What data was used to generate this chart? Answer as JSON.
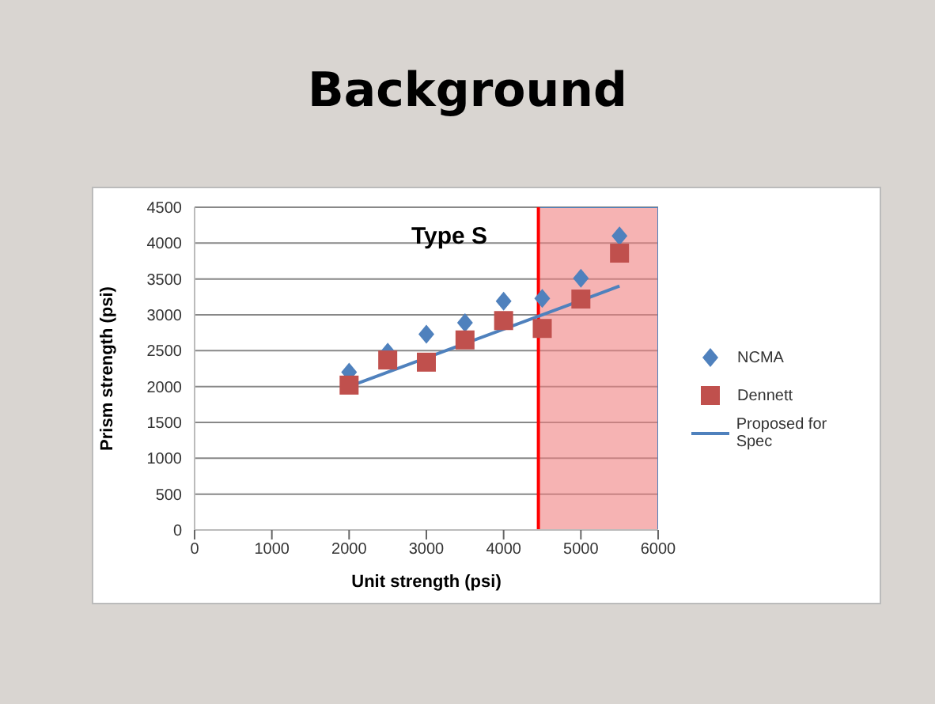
{
  "chart_data": {
    "type": "scatter",
    "title": "Background",
    "subtitle": "Type S",
    "xlabel": "Unit strength (psi)",
    "ylabel": "Prism strength (psi)",
    "x": [
      2000,
      2500,
      3000,
      3500,
      4000,
      4500,
      5000,
      5500
    ],
    "series": [
      {
        "name": "NCMA",
        "color": "#4f81bd",
        "marker": "diamond",
        "values": [
          2200,
          2480,
          2730,
          2890,
          3190,
          3230,
          3510,
          4100
        ]
      },
      {
        "name": "Dennett",
        "color": "#c0504d",
        "marker": "square",
        "values": [
          2020,
          2370,
          2340,
          2650,
          2920,
          2810,
          3220,
          3860
        ]
      },
      {
        "name": "Proposed for Spec",
        "type": "line",
        "color": "#4f81bd",
        "marker": "none",
        "x": [
          2000,
          5500
        ],
        "values": [
          2000,
          3400
        ]
      }
    ],
    "xlim": [
      0,
      6000
    ],
    "xticks": [
      0,
      1000,
      2000,
      3000,
      4000,
      5000,
      6000
    ],
    "ylim": [
      0,
      4500
    ],
    "yticks": [
      0,
      500,
      1000,
      1500,
      2000,
      2500,
      3000,
      3500,
      4000,
      4500
    ],
    "grid": "y",
    "legend": "right",
    "ref_lines": [
      {
        "axis": "x",
        "value": 4450,
        "color": "#ff0000"
      }
    ],
    "bands": [
      {
        "axis": "x",
        "from": 4450,
        "to": 6000,
        "color": "#f08080"
      }
    ]
  }
}
